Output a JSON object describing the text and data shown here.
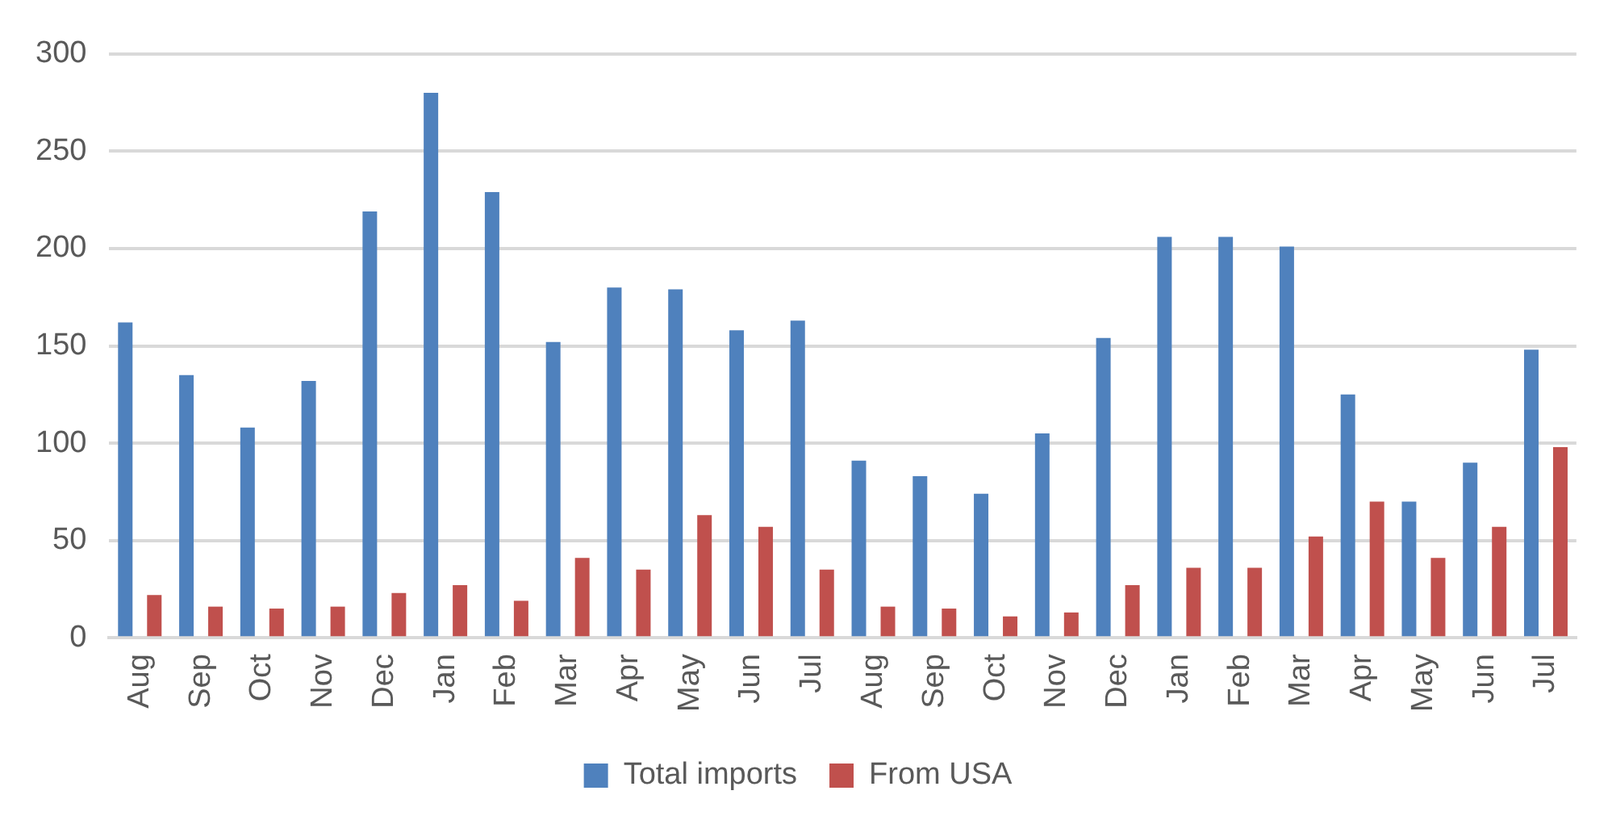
{
  "chart_data": {
    "type": "bar",
    "categories": [
      "Aug",
      "Sep",
      "Oct",
      "Nov",
      "Dec",
      "Jan",
      "Feb",
      "Mar",
      "Apr",
      "May",
      "Jun",
      "Jul",
      "Aug",
      "Sep",
      "Oct",
      "Nov",
      "Dec",
      "Jan",
      "Feb",
      "Mar",
      "Apr",
      "May",
      "Jun",
      "Jul"
    ],
    "series": [
      {
        "name": "Total imports",
        "color": "#4f81bd",
        "values": [
          162,
          135,
          108,
          132,
          219,
          280,
          229,
          152,
          180,
          179,
          158,
          163,
          91,
          83,
          74,
          105,
          154,
          206,
          206,
          201,
          125,
          70,
          90,
          148
        ]
      },
      {
        "name": "From USA",
        "color": "#c0504d",
        "values": [
          22,
          16,
          15,
          16,
          23,
          27,
          19,
          41,
          35,
          63,
          57,
          35,
          16,
          15,
          11,
          13,
          27,
          36,
          36,
          52,
          70,
          41,
          57,
          98
        ]
      }
    ],
    "ylim": [
      0,
      300
    ],
    "yticks": [
      0,
      50,
      100,
      150,
      200,
      250,
      300
    ],
    "grid": "y",
    "legend": "bottom"
  }
}
